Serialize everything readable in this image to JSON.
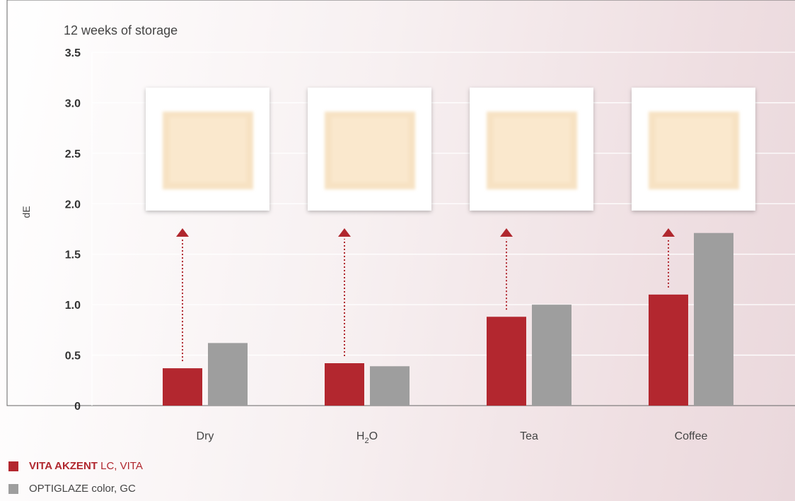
{
  "colors": {
    "vita": "#b3272f",
    "optiglaze": "#9e9e9e",
    "arrow": "#b0272e",
    "axis": "#555555",
    "grid": "#ffffff"
  },
  "legend": {
    "vita_brand": "VITA AKZENT",
    "vita_rest": " LC, VITA",
    "optiglaze": "OPTIGLAZE color, GC"
  },
  "chart_data": {
    "type": "bar",
    "title": "12 weeks of storage",
    "ylabel": "dE",
    "ylim": [
      0,
      3.5
    ],
    "yticks": [
      "0",
      "0.5",
      "1.0",
      "1.5",
      "2.0",
      "2.5",
      "3.0",
      "3.5"
    ],
    "categories": [
      "Dry",
      "H2O",
      "Tea",
      "Coffee"
    ],
    "series": [
      {
        "name": "VITA AKZENT LC, VITA",
        "values": [
          0.37,
          0.42,
          0.88,
          1.1
        ]
      },
      {
        "name": "OPTIGLAZE color, GC",
        "values": [
          0.62,
          0.39,
          1.0,
          1.71
        ]
      }
    ],
    "grid": true,
    "legend_position": "bottom-left",
    "annotations": "Arrows from VITA AKZENT bars point to photos of stained specimens"
  }
}
